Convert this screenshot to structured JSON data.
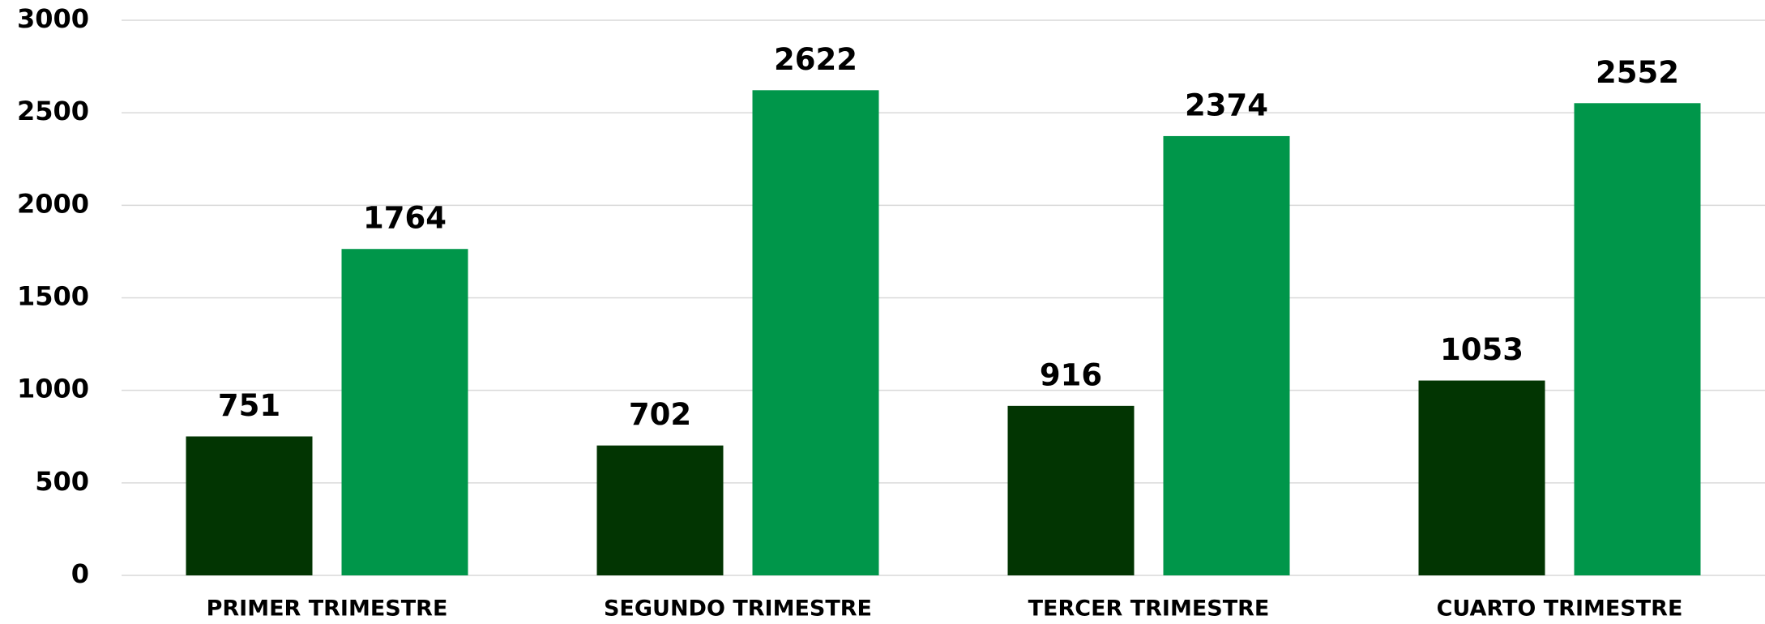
{
  "chart_data": {
    "type": "bar",
    "categories": [
      "PRIMER TRIMESTRE",
      "SEGUNDO TRIMESTRE",
      "TERCER TRIMESTRE",
      "CUARTO TRIMESTRE"
    ],
    "series": [
      {
        "color": "#023502",
        "values": [
          751,
          702,
          916,
          1053
        ]
      },
      {
        "color": "#00964a",
        "values": [
          1764,
          2622,
          2374,
          2552
        ]
      }
    ],
    "ylim": [
      0,
      3000
    ],
    "yticks": [
      0,
      500,
      1000,
      1500,
      2000,
      2500,
      3000
    ],
    "grid": true
  }
}
